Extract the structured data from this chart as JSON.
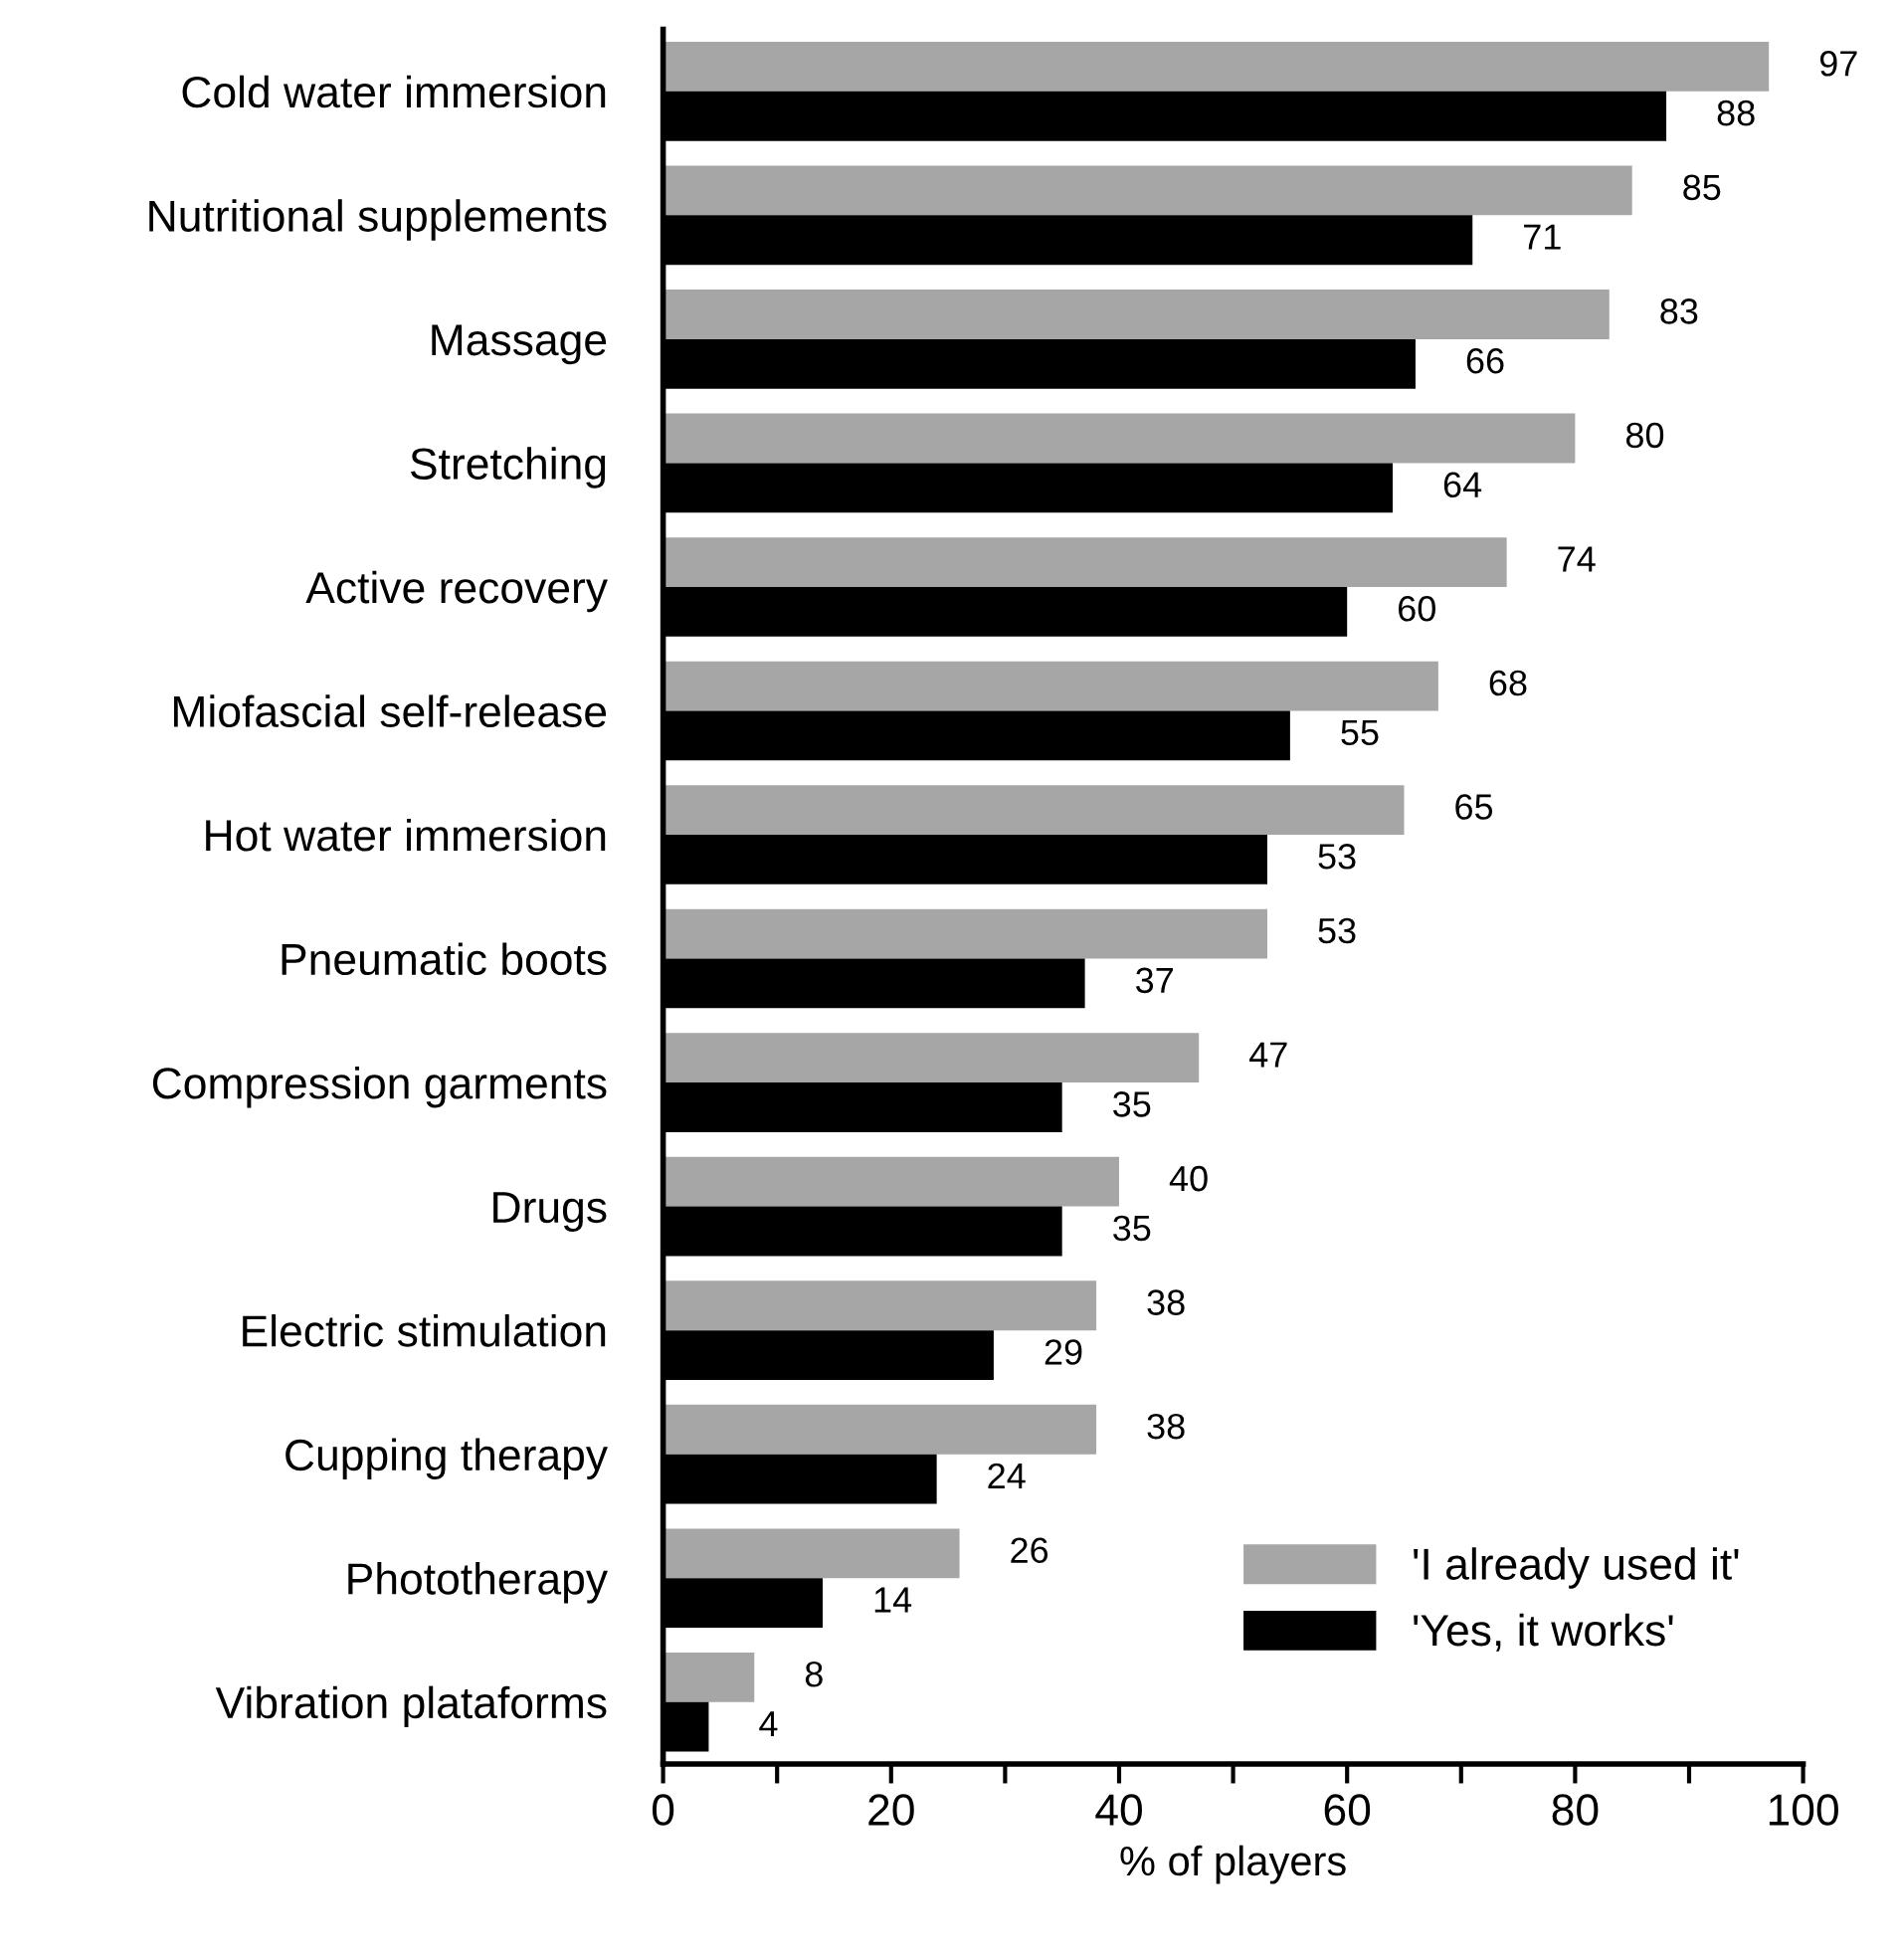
{
  "chart_data": {
    "type": "bar",
    "orientation": "horizontal",
    "xlabel": "% of players",
    "categories": [
      "Cold water immersion",
      "Nutritional supplements",
      "Massage",
      "Stretching",
      "Active recovery",
      "Miofascial self-release",
      "Hot water immersion",
      "Pneumatic boots",
      "Compression garments",
      "Drugs",
      "Electric stimulation",
      "Cupping therapy",
      "Phototherapy",
      "Vibration plataforms"
    ],
    "series": [
      {
        "name": "'I already used it'",
        "color": "#a6a6a6",
        "values": [
          97,
          85,
          83,
          80,
          74,
          68,
          65,
          53,
          47,
          40,
          38,
          38,
          26,
          8
        ]
      },
      {
        "name": "'Yes, it works'",
        "color": "#000000",
        "values": [
          88,
          71,
          66,
          64,
          60,
          55,
          53,
          37,
          35,
          35,
          29,
          24,
          14,
          4
        ]
      }
    ],
    "xlim": [
      0,
      100
    ],
    "xticks": [
      0,
      {
        "value": 10,
        "label": null
      },
      20,
      {
        "value": 30,
        "label": null
      },
      40,
      {
        "value": 50,
        "label": null
      },
      60,
      {
        "value": 70,
        "label": null
      },
      80,
      {
        "value": 90,
        "label": null
      },
      100
    ],
    "data_labels": true,
    "legend": "bottom right",
    "grid": false
  }
}
